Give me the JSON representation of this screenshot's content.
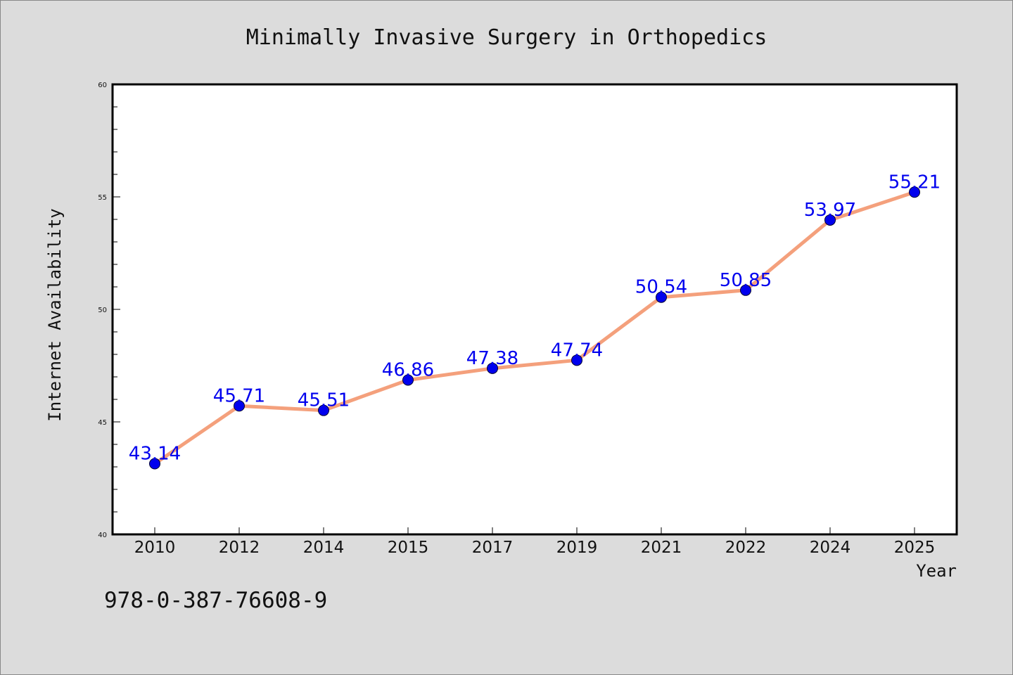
{
  "chart_data": {
    "type": "line",
    "title": "Minimally Invasive Surgery in Orthopedics",
    "xlabel": "Year",
    "ylabel": "Internet Availability",
    "categories": [
      "2010",
      "2012",
      "2014",
      "2015",
      "2017",
      "2019",
      "2021",
      "2022",
      "2024",
      "2025"
    ],
    "series": [
      {
        "values": [
          43.14,
          45.71,
          45.51,
          46.86,
          47.38,
          47.74,
          50.54,
          50.85,
          53.97,
          55.21
        ],
        "data_labels": [
          "43.14",
          "45.71",
          "45.51",
          "46.86",
          "47.38",
          "47.74",
          "50.54",
          "50.85",
          "53.97",
          "55.21"
        ]
      }
    ],
    "ylim": [
      40,
      60
    ],
    "yticks": [
      "40",
      "45",
      "50",
      "55",
      "60"
    ],
    "grid": false,
    "line_color": "#f4a07c",
    "marker_color": "#0000ee",
    "label_color": "#0000ee"
  },
  "footer": {
    "code": "978-0-387-76608-9"
  },
  "colors": {
    "background": "#dcdcdc",
    "plot_background": "#ffffff"
  }
}
